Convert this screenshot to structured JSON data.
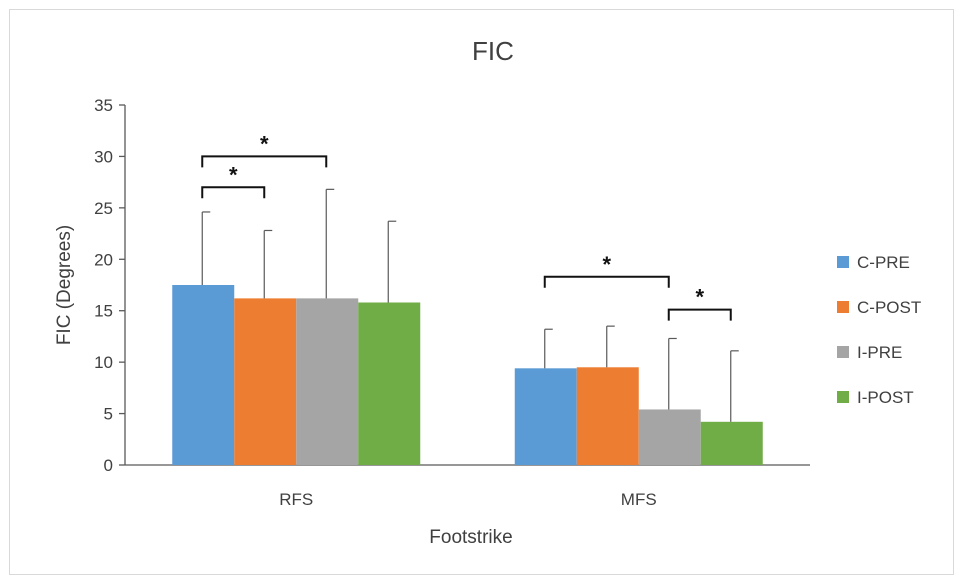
{
  "chart_data": {
    "type": "bar",
    "title": "FIC",
    "xlabel": "Footstrike",
    "ylabel": "FIC (Degrees)",
    "categories": [
      "RFS",
      "MFS"
    ],
    "ylim": [
      0,
      35
    ],
    "yticks": [
      0,
      5,
      10,
      15,
      20,
      25,
      30,
      35
    ],
    "grid": false,
    "legend_position": "right",
    "series": [
      {
        "name": "C-PRE",
        "color": "#5b9bd5",
        "values": [
          17.5,
          9.4
        ],
        "error": [
          7.1,
          3.8
        ]
      },
      {
        "name": "C-POST",
        "color": "#ed7d31",
        "values": [
          16.2,
          9.5
        ],
        "error": [
          6.6,
          4.0
        ]
      },
      {
        "name": "I-PRE",
        "color": "#a5a5a5",
        "values": [
          16.2,
          5.4
        ],
        "error": [
          10.6,
          6.9
        ]
      },
      {
        "name": "I-POST",
        "color": "#70ad47",
        "values": [
          15.8,
          4.2
        ],
        "error": [
          7.9,
          6.9
        ]
      }
    ],
    "significance": [
      {
        "category": 0,
        "from": 0,
        "to": 1,
        "level": 1,
        "label": "*"
      },
      {
        "category": 0,
        "from": 0,
        "to": 2,
        "level": 2,
        "label": "*"
      },
      {
        "category": 1,
        "from": 0,
        "to": 2,
        "level": 1,
        "label": "*"
      },
      {
        "category": 1,
        "from": 2,
        "to": 3,
        "level": 0,
        "label": "*"
      }
    ]
  }
}
